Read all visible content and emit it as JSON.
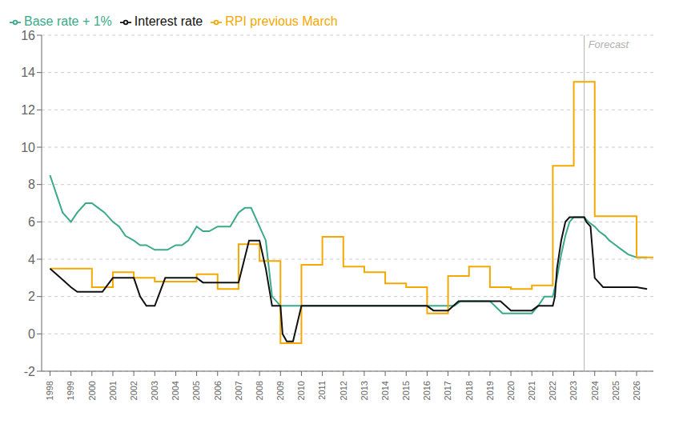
{
  "chart_data": {
    "type": "line",
    "xlim": [
      1997.6,
      2026.8
    ],
    "xticks": [
      1998,
      1999,
      2000,
      2001,
      2002,
      2003,
      2004,
      2005,
      2006,
      2007,
      2008,
      2009,
      2010,
      2011,
      2012,
      2013,
      2014,
      2015,
      2016,
      2017,
      2018,
      2019,
      2020,
      2021,
      2022,
      2023,
      2024,
      2025,
      2026
    ],
    "ylim": [
      -2,
      16
    ],
    "yticks": [
      -2,
      0,
      2,
      4,
      6,
      8,
      10,
      12,
      14,
      16
    ],
    "grid": true,
    "legend": "upper left",
    "series": [
      {
        "name": "Base rate + 1%",
        "type": "line",
        "color": "#3aaa8a",
        "x": [
          1998.0,
          1998.3,
          1998.6,
          1999.0,
          1999.3,
          1999.7,
          2000.0,
          2000.3,
          2000.6,
          2001.0,
          2001.3,
          2001.6,
          2002.0,
          2002.3,
          2002.6,
          2003.0,
          2003.3,
          2003.6,
          2004.0,
          2004.3,
          2004.6,
          2005.0,
          2005.3,
          2005.6,
          2006.0,
          2006.3,
          2006.6,
          2007.0,
          2007.3,
          2007.6,
          2008.0,
          2008.3,
          2008.6,
          2009.0,
          2009.3,
          2009.6,
          2010.0,
          2010.6,
          2011.0,
          2011.6,
          2012.0,
          2012.6,
          2013.0,
          2013.6,
          2014.0,
          2014.6,
          2015.0,
          2015.6,
          2016.0,
          2016.6,
          2017.0,
          2017.3,
          2017.6,
          2018.0,
          2018.3,
          2018.6,
          2019.0,
          2019.6,
          2020.0,
          2020.6,
          2021.0,
          2021.3,
          2021.6,
          2022.0,
          2022.2,
          2022.4,
          2022.6,
          2022.8,
          2023.0,
          2023.2,
          2023.5,
          2023.7,
          2024.0,
          2024.2,
          2024.5,
          2024.7,
          2025.0,
          2025.3,
          2025.6,
          2026.0,
          2026.5
        ],
        "values": [
          8.5,
          7.5,
          6.5,
          6.0,
          6.5,
          7.0,
          7.0,
          6.75,
          6.5,
          6.0,
          5.75,
          5.25,
          5.0,
          4.75,
          4.75,
          4.5,
          4.5,
          4.5,
          4.75,
          4.75,
          5.0,
          5.75,
          5.5,
          5.5,
          5.75,
          5.75,
          5.75,
          6.5,
          6.75,
          6.75,
          5.75,
          5.0,
          2.0,
          1.5,
          1.5,
          1.5,
          1.5,
          1.5,
          1.5,
          1.5,
          1.5,
          1.5,
          1.5,
          1.5,
          1.5,
          1.5,
          1.5,
          1.5,
          1.5,
          1.5,
          1.5,
          1.5,
          1.75,
          1.75,
          1.75,
          1.75,
          1.75,
          1.1,
          1.1,
          1.1,
          1.1,
          1.5,
          2.0,
          2.0,
          3.0,
          4.25,
          5.25,
          6.0,
          6.25,
          6.25,
          6.25,
          6.0,
          5.75,
          5.5,
          5.25,
          5.0,
          4.75,
          4.5,
          4.25,
          4.1,
          4.1
        ]
      },
      {
        "name": "RPI previous March",
        "type": "step",
        "color": "#f5a800",
        "x": [
          1998,
          1999,
          2000,
          2001,
          2002,
          2003,
          2004,
          2005,
          2006,
          2007,
          2008,
          2009,
          2010,
          2011,
          2012,
          2013,
          2014,
          2015,
          2016,
          2017,
          2018,
          2019,
          2020,
          2021,
          2022,
          2023,
          2024,
          2025,
          2026,
          2026.8
        ],
        "values": [
          3.5,
          3.5,
          2.5,
          3.3,
          3.0,
          2.8,
          2.8,
          3.2,
          2.4,
          4.8,
          3.9,
          -0.5,
          3.7,
          5.2,
          3.6,
          3.3,
          2.7,
          2.5,
          1.1,
          3.1,
          3.6,
          2.5,
          2.4,
          2.6,
          9.0,
          13.5,
          6.3,
          6.3,
          4.1,
          4.1
        ]
      },
      {
        "name": "Interest rate",
        "type": "line",
        "color": "#111111",
        "x": [
          1998.0,
          1998.5,
          1999.0,
          1999.3,
          1999.6,
          2000.0,
          2000.5,
          2001.0,
          2001.5,
          2002.0,
          2002.3,
          2002.6,
          2003.0,
          2003.5,
          2004.0,
          2004.5,
          2005.0,
          2005.3,
          2005.6,
          2006.0,
          2006.5,
          2007.0,
          2007.5,
          2008.0,
          2008.3,
          2008.6,
          2009.0,
          2009.1,
          2009.3,
          2009.6,
          2010.0,
          2010.5,
          2011.0,
          2011.5,
          2012.0,
          2012.5,
          2013.0,
          2013.5,
          2014.0,
          2014.5,
          2015.0,
          2015.5,
          2016.0,
          2016.3,
          2016.6,
          2017.0,
          2017.5,
          2018.0,
          2018.5,
          2019.0,
          2019.5,
          2020.0,
          2020.5,
          2021.0,
          2021.3,
          2021.6,
          2022.0,
          2022.1,
          2022.2,
          2022.4,
          2022.6,
          2022.8,
          2023.0,
          2023.1,
          2023.3,
          2023.5,
          2023.6,
          2023.8,
          2024.0,
          2024.2,
          2024.4,
          2024.6,
          2024.8,
          2025.0,
          2025.3,
          2025.6,
          2025.9,
          2026.0,
          2026.5
        ],
        "values": [
          3.5,
          3.0,
          2.5,
          2.25,
          2.25,
          2.25,
          2.25,
          3.0,
          3.0,
          3.0,
          2.0,
          1.5,
          1.5,
          3.0,
          3.0,
          3.0,
          3.0,
          2.75,
          2.75,
          2.75,
          2.75,
          2.75,
          5.0,
          5.0,
          3.5,
          1.5,
          1.5,
          0.0,
          -0.4,
          -0.4,
          1.5,
          1.5,
          1.5,
          1.5,
          1.5,
          1.5,
          1.5,
          1.5,
          1.5,
          1.5,
          1.5,
          1.5,
          1.5,
          1.25,
          1.25,
          1.25,
          1.75,
          1.75,
          1.75,
          1.75,
          1.75,
          1.25,
          1.25,
          1.25,
          1.5,
          1.5,
          1.5,
          2.0,
          3.5,
          5.0,
          6.0,
          6.25,
          6.25,
          6.25,
          6.25,
          6.25,
          6.0,
          5.75,
          3.0,
          2.75,
          2.5,
          2.5,
          2.5,
          2.5,
          2.5,
          2.5,
          2.5,
          2.5,
          2.4
        ]
      }
    ],
    "vlines": [
      {
        "x": 2023.5,
        "color": "#b0b0b0"
      }
    ],
    "annotations": [
      {
        "text": "Forecast",
        "x": 2023.5,
        "y": 15.5,
        "color": "#b0b0b0"
      }
    ]
  }
}
